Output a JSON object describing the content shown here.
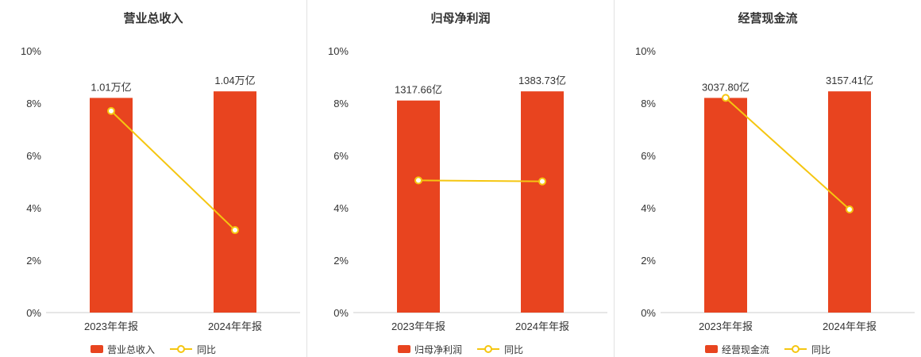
{
  "axis": {
    "tick_labels": [
      "0%",
      "2%",
      "4%",
      "6%",
      "8%",
      "10%"
    ],
    "tick_values": [
      0,
      2,
      4,
      6,
      8,
      10
    ],
    "max": 10
  },
  "colors": {
    "bar": "#e8441f",
    "line": "#f5c611",
    "title_text": "#333333",
    "axis_text": "#333333",
    "axis_line": "#cccccc",
    "divider": "#e2e2e2",
    "background": "#ffffff"
  },
  "chart_data": [
    {
      "type": "bar",
      "title": "营业总收入",
      "categories": [
        "2023年年报",
        "2024年年报"
      ],
      "ylim": [
        0,
        10
      ],
      "yticks": [
        "0%",
        "2%",
        "4%",
        "6%",
        "8%",
        "10%"
      ],
      "legend": [
        "营业总收入",
        "同比"
      ],
      "series": [
        {
          "name": "营业总收入",
          "type": "bar",
          "value_labels": [
            "1.01万亿",
            "1.04万亿"
          ],
          "plotted_pct": [
            8.2,
            8.45
          ]
        },
        {
          "name": "同比",
          "type": "line",
          "values_pct": [
            7.7,
            3.15
          ]
        }
      ]
    },
    {
      "type": "bar",
      "title": "归母净利润",
      "categories": [
        "2023年年报",
        "2024年年报"
      ],
      "ylim": [
        0,
        10
      ],
      "yticks": [
        "0%",
        "2%",
        "4%",
        "6%",
        "8%",
        "10%"
      ],
      "legend": [
        "归母净利润",
        "同比"
      ],
      "series": [
        {
          "name": "归母净利润",
          "type": "bar",
          "value_labels": [
            "1317.66亿",
            "1383.73亿"
          ],
          "plotted_pct": [
            8.1,
            8.45
          ]
        },
        {
          "name": "同比",
          "type": "line",
          "values_pct": [
            5.05,
            5.01
          ]
        }
      ]
    },
    {
      "type": "bar",
      "title": "经营现金流",
      "categories": [
        "2023年年报",
        "2024年年报"
      ],
      "ylim": [
        0,
        10
      ],
      "yticks": [
        "0%",
        "2%",
        "4%",
        "6%",
        "8%",
        "10%"
      ],
      "legend": [
        "经营现金流",
        "同比"
      ],
      "series": [
        {
          "name": "经营现金流",
          "type": "bar",
          "value_labels": [
            "3037.80亿",
            "3157.41亿"
          ],
          "plotted_pct": [
            8.2,
            8.45
          ]
        },
        {
          "name": "同比",
          "type": "line",
          "values_pct": [
            8.2,
            3.94
          ]
        }
      ]
    }
  ]
}
